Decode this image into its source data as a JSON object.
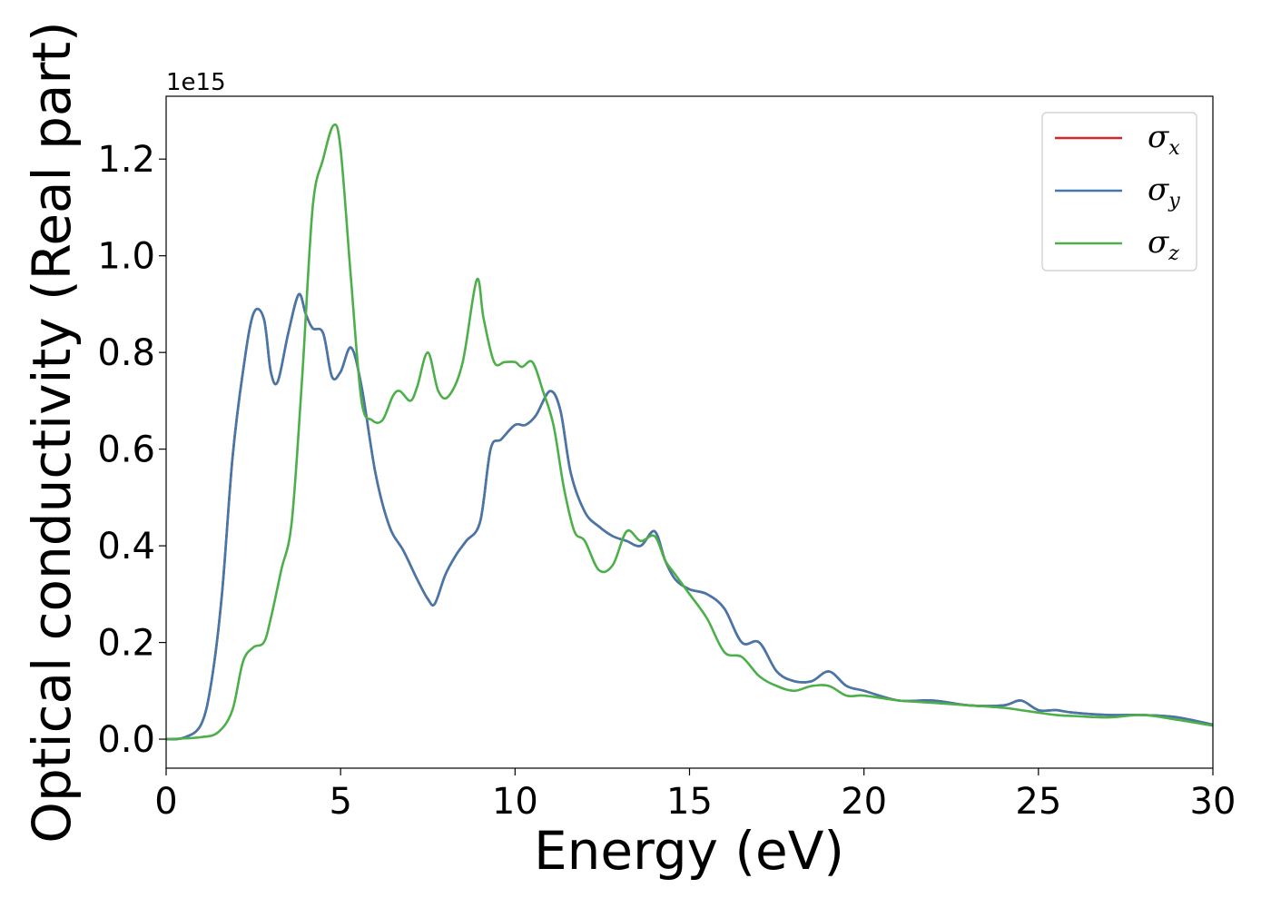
{
  "chart_data": {
    "type": "line",
    "xlabel": "Energy (eV)",
    "ylabel": "Optical conductivity (Real part)",
    "y_offset_label": "1e15",
    "xlim": [
      0,
      30
    ],
    "ylim": [
      -0.06,
      1.33
    ],
    "x_ticks": [
      0,
      5,
      10,
      15,
      20,
      25,
      30
    ],
    "x_tick_labels": [
      "0",
      "5",
      "10",
      "15",
      "20",
      "25",
      "30"
    ],
    "y_ticks": [
      0.0,
      0.2,
      0.4,
      0.6,
      0.8,
      1.0,
      1.2
    ],
    "y_tick_labels": [
      "0.0",
      "0.2",
      "0.4",
      "0.6",
      "0.8",
      "1.0",
      "1.2"
    ],
    "grid": false,
    "legend_position": "top-right",
    "series": [
      {
        "name": "σx",
        "legend_symbol": "σ",
        "legend_subscript": "x",
        "color": "#d62728",
        "x": [
          0,
          0.5,
          1.0,
          1.3,
          1.6,
          1.9,
          2.2,
          2.5,
          2.8,
          3.0,
          3.2,
          3.5,
          3.8,
          4.0,
          4.2,
          4.5,
          4.75,
          5.0,
          5.3,
          5.6,
          6.0,
          6.4,
          6.8,
          7.2,
          7.5,
          7.7,
          8.0,
          8.3,
          8.6,
          9.0,
          9.3,
          9.6,
          10.0,
          10.3,
          10.6,
          11.0,
          11.3,
          11.6,
          12.0,
          12.4,
          12.8,
          13.2,
          13.6,
          14.0,
          14.3,
          14.6,
          15.0,
          15.5,
          16.0,
          16.5,
          17.0,
          17.5,
          18.0,
          18.5,
          19.0,
          19.5,
          20.0,
          21.0,
          22.0,
          23.0,
          24.0,
          24.5,
          25.0,
          25.5,
          26.0,
          27.0,
          28.0,
          29.0,
          30.0
        ],
        "y": [
          0.0,
          0.003,
          0.03,
          0.12,
          0.3,
          0.58,
          0.76,
          0.88,
          0.87,
          0.76,
          0.74,
          0.84,
          0.92,
          0.88,
          0.85,
          0.84,
          0.75,
          0.76,
          0.81,
          0.73,
          0.55,
          0.44,
          0.39,
          0.33,
          0.29,
          0.28,
          0.34,
          0.38,
          0.41,
          0.45,
          0.6,
          0.62,
          0.65,
          0.65,
          0.67,
          0.72,
          0.68,
          0.55,
          0.47,
          0.44,
          0.42,
          0.41,
          0.4,
          0.43,
          0.37,
          0.33,
          0.31,
          0.3,
          0.27,
          0.2,
          0.2,
          0.14,
          0.12,
          0.12,
          0.14,
          0.11,
          0.1,
          0.08,
          0.08,
          0.07,
          0.07,
          0.08,
          0.06,
          0.06,
          0.055,
          0.05,
          0.05,
          0.045,
          0.03
        ]
      },
      {
        "name": "σy",
        "legend_symbol": "σ",
        "legend_subscript": "y",
        "color": "#4477aa",
        "x": [
          0,
          0.5,
          1.0,
          1.3,
          1.6,
          1.9,
          2.2,
          2.5,
          2.8,
          3.0,
          3.2,
          3.5,
          3.8,
          4.0,
          4.2,
          4.5,
          4.75,
          5.0,
          5.3,
          5.6,
          6.0,
          6.4,
          6.8,
          7.2,
          7.5,
          7.7,
          8.0,
          8.3,
          8.6,
          9.0,
          9.3,
          9.6,
          10.0,
          10.3,
          10.6,
          11.0,
          11.3,
          11.6,
          12.0,
          12.4,
          12.8,
          13.2,
          13.6,
          14.0,
          14.3,
          14.6,
          15.0,
          15.5,
          16.0,
          16.5,
          17.0,
          17.5,
          18.0,
          18.5,
          19.0,
          19.5,
          20.0,
          21.0,
          22.0,
          23.0,
          24.0,
          24.5,
          25.0,
          25.5,
          26.0,
          27.0,
          28.0,
          29.0,
          30.0
        ],
        "y": [
          0.0,
          0.003,
          0.03,
          0.12,
          0.3,
          0.58,
          0.76,
          0.88,
          0.87,
          0.76,
          0.74,
          0.84,
          0.92,
          0.88,
          0.85,
          0.84,
          0.75,
          0.76,
          0.81,
          0.73,
          0.55,
          0.44,
          0.39,
          0.33,
          0.29,
          0.28,
          0.34,
          0.38,
          0.41,
          0.45,
          0.6,
          0.62,
          0.65,
          0.65,
          0.67,
          0.72,
          0.68,
          0.55,
          0.47,
          0.44,
          0.42,
          0.41,
          0.4,
          0.43,
          0.37,
          0.33,
          0.31,
          0.3,
          0.27,
          0.2,
          0.2,
          0.14,
          0.12,
          0.12,
          0.14,
          0.11,
          0.1,
          0.08,
          0.08,
          0.07,
          0.07,
          0.08,
          0.06,
          0.06,
          0.055,
          0.05,
          0.05,
          0.045,
          0.03
        ]
      },
      {
        "name": "σz",
        "legend_symbol": "σ",
        "legend_subscript": "z",
        "color": "#4daf4a",
        "x": [
          0,
          1.0,
          1.5,
          1.9,
          2.2,
          2.5,
          2.8,
          3.0,
          3.3,
          3.6,
          3.9,
          4.2,
          4.5,
          4.8,
          5.0,
          5.3,
          5.6,
          5.9,
          6.2,
          6.5,
          6.7,
          7.0,
          7.2,
          7.5,
          7.8,
          8.1,
          8.5,
          8.9,
          9.1,
          9.4,
          9.7,
          10.0,
          10.2,
          10.5,
          10.8,
          11.1,
          11.4,
          11.7,
          12.0,
          12.4,
          12.8,
          13.2,
          13.6,
          14.0,
          14.3,
          14.6,
          15.0,
          15.5,
          16.0,
          16.5,
          17.0,
          17.5,
          18.0,
          18.5,
          19.0,
          19.5,
          20.0,
          21.0,
          22.0,
          23.0,
          24.0,
          24.5,
          25.0,
          25.5,
          26.0,
          27.0,
          28.0,
          29.0,
          30.0
        ],
        "y": [
          0.0,
          0.004,
          0.015,
          0.06,
          0.16,
          0.19,
          0.2,
          0.25,
          0.35,
          0.45,
          0.75,
          1.1,
          1.2,
          1.27,
          1.22,
          0.95,
          0.7,
          0.66,
          0.66,
          0.71,
          0.72,
          0.7,
          0.73,
          0.8,
          0.72,
          0.71,
          0.78,
          0.95,
          0.87,
          0.78,
          0.78,
          0.78,
          0.77,
          0.78,
          0.72,
          0.65,
          0.52,
          0.43,
          0.41,
          0.35,
          0.36,
          0.43,
          0.41,
          0.42,
          0.37,
          0.34,
          0.3,
          0.25,
          0.18,
          0.17,
          0.13,
          0.11,
          0.1,
          0.11,
          0.11,
          0.09,
          0.09,
          0.08,
          0.075,
          0.07,
          0.065,
          0.06,
          0.055,
          0.05,
          0.048,
          0.045,
          0.05,
          0.04,
          0.028
        ]
      }
    ]
  }
}
